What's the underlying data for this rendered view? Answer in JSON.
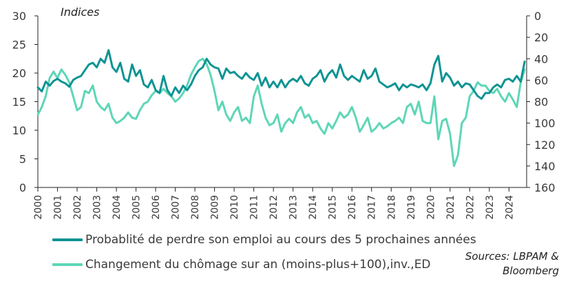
{
  "unit_label": "Indices",
  "source": [
    "Sources: LBPAM &",
    "Bloomberg"
  ],
  "colors": {
    "series1": "#0e9393",
    "series2": "#5dd6b6"
  },
  "chart_data": {
    "type": "line",
    "xlabel": "",
    "ylabel": "Indices",
    "ylim": [
      0,
      30
    ],
    "y_ticks": [
      "0",
      "5",
      "10",
      "15",
      "20",
      "25",
      "30"
    ],
    "y2lim": [
      160,
      0
    ],
    "y2_ticks": [
      "0",
      "20",
      "40",
      "60",
      "80",
      "100",
      "120",
      "140",
      "160"
    ],
    "y2_inverted": true,
    "xlim": [
      2000,
      2024.9
    ],
    "x_ticks": [
      "2000",
      "2001",
      "2002",
      "2003",
      "2004",
      "2005",
      "2006",
      "2007",
      "2008",
      "2009",
      "2010",
      "2011",
      "2012",
      "2013",
      "2014",
      "2015",
      "2016",
      "2017",
      "2018",
      "2019",
      "2020",
      "2021",
      "2022",
      "2023",
      "2024"
    ],
    "grid": false,
    "legend_position": "bottom",
    "series": [
      {
        "name": "Probablité de perdre son emploi au cours des 5 prochaines années",
        "axis": "left",
        "x": [
          2000.0,
          2000.2,
          2000.4,
          2000.6,
          2000.8,
          2001.0,
          2001.2,
          2001.4,
          2001.6,
          2001.8,
          2002.0,
          2002.2,
          2002.4,
          2002.6,
          2002.8,
          2003.0,
          2003.2,
          2003.4,
          2003.6,
          2003.8,
          2004.0,
          2004.2,
          2004.4,
          2004.6,
          2004.8,
          2005.0,
          2005.2,
          2005.4,
          2005.6,
          2005.8,
          2006.0,
          2006.2,
          2006.4,
          2006.6,
          2006.8,
          2007.0,
          2007.2,
          2007.4,
          2007.6,
          2007.8,
          2008.0,
          2008.2,
          2008.4,
          2008.6,
          2008.8,
          2009.0,
          2009.2,
          2009.4,
          2009.6,
          2009.8,
          2010.0,
          2010.2,
          2010.4,
          2010.6,
          2010.8,
          2011.0,
          2011.2,
          2011.4,
          2011.6,
          2011.8,
          2012.0,
          2012.2,
          2012.4,
          2012.6,
          2012.8,
          2013.0,
          2013.2,
          2013.4,
          2013.6,
          2013.8,
          2014.0,
          2014.2,
          2014.4,
          2014.6,
          2014.8,
          2015.0,
          2015.2,
          2015.4,
          2015.6,
          2015.8,
          2016.0,
          2016.2,
          2016.4,
          2016.6,
          2016.8,
          2017.0,
          2017.2,
          2017.4,
          2017.6,
          2017.8,
          2018.0,
          2018.2,
          2018.4,
          2018.6,
          2018.8,
          2019.0,
          2019.2,
          2019.4,
          2019.6,
          2019.8,
          2020.0,
          2020.2,
          2020.4,
          2020.6,
          2020.8,
          2021.0,
          2021.2,
          2021.4,
          2021.6,
          2021.8,
          2022.0,
          2022.2,
          2022.4,
          2022.6,
          2022.8,
          2023.0,
          2023.2,
          2023.4,
          2023.6,
          2023.8,
          2024.0,
          2024.2,
          2024.4,
          2024.6,
          2024.8
        ],
        "values": [
          17.5,
          16.8,
          18.5,
          17.8,
          18.6,
          19.0,
          18.5,
          18.2,
          17.6,
          18.8,
          19.2,
          19.5,
          20.5,
          21.5,
          21.8,
          21.0,
          22.5,
          21.8,
          24.0,
          21.0,
          20.2,
          21.8,
          19.0,
          18.5,
          21.5,
          19.5,
          20.5,
          18.0,
          17.5,
          18.8,
          17.0,
          16.5,
          19.5,
          17.0,
          16.0,
          17.5,
          16.5,
          17.8,
          17.0,
          18.0,
          19.5,
          20.5,
          21.0,
          22.5,
          21.5,
          21.0,
          20.8,
          19.0,
          20.8,
          20.0,
          20.2,
          19.5,
          19.0,
          20.0,
          19.2,
          18.8,
          20.0,
          17.8,
          19.2,
          17.5,
          18.5,
          17.5,
          18.8,
          17.5,
          18.5,
          19.0,
          18.5,
          19.5,
          18.2,
          17.8,
          19.0,
          19.5,
          20.5,
          18.5,
          19.8,
          20.5,
          19.2,
          21.5,
          19.5,
          18.8,
          19.5,
          19.0,
          18.5,
          20.5,
          19.0,
          19.5,
          20.8,
          18.5,
          18.0,
          17.5,
          17.8,
          18.2,
          17.0,
          18.0,
          17.5,
          18.0,
          17.8,
          17.5,
          18.0,
          17.0,
          18.2,
          21.5,
          23.0,
          18.5,
          20.0,
          19.2,
          17.8,
          18.5,
          17.5,
          18.2,
          18.0,
          17.0,
          16.0,
          15.5,
          16.5,
          16.5,
          17.5,
          18.0,
          17.5,
          18.8,
          19.0,
          18.5,
          19.5,
          18.5,
          22.0
        ]
      },
      {
        "name": "Changement du chômage sur an (moins-plus+100),inv.,ED",
        "axis": "right",
        "x": [
          2000.0,
          2000.2,
          2000.4,
          2000.6,
          2000.8,
          2001.0,
          2001.2,
          2001.4,
          2001.6,
          2001.8,
          2002.0,
          2002.2,
          2002.4,
          2002.6,
          2002.8,
          2003.0,
          2003.2,
          2003.4,
          2003.6,
          2003.8,
          2004.0,
          2004.2,
          2004.4,
          2004.6,
          2004.8,
          2005.0,
          2005.2,
          2005.4,
          2005.6,
          2005.8,
          2006.0,
          2006.2,
          2006.4,
          2006.6,
          2006.8,
          2007.0,
          2007.2,
          2007.4,
          2007.6,
          2007.8,
          2008.0,
          2008.2,
          2008.4,
          2008.6,
          2008.8,
          2009.0,
          2009.2,
          2009.4,
          2009.6,
          2009.8,
          2010.0,
          2010.2,
          2010.4,
          2010.6,
          2010.8,
          2011.0,
          2011.2,
          2011.4,
          2011.6,
          2011.8,
          2012.0,
          2012.2,
          2012.4,
          2012.6,
          2012.8,
          2013.0,
          2013.2,
          2013.4,
          2013.6,
          2013.8,
          2014.0,
          2014.2,
          2014.4,
          2014.6,
          2014.8,
          2015.0,
          2015.2,
          2015.4,
          2015.6,
          2015.8,
          2016.0,
          2016.2,
          2016.4,
          2016.6,
          2016.8,
          2017.0,
          2017.2,
          2017.4,
          2017.6,
          2017.8,
          2018.0,
          2018.2,
          2018.4,
          2018.6,
          2018.8,
          2019.0,
          2019.2,
          2019.4,
          2019.6,
          2019.8,
          2020.0,
          2020.2,
          2020.4,
          2020.6,
          2020.8,
          2021.0,
          2021.2,
          2021.4,
          2021.6,
          2021.8,
          2022.0,
          2022.2,
          2022.4,
          2022.6,
          2022.8,
          2023.0,
          2023.2,
          2023.4,
          2023.6,
          2023.8,
          2024.0,
          2024.2,
          2024.4,
          2024.6,
          2024.8
        ],
        "values": [
          92,
          85,
          75,
          58,
          52,
          58,
          50,
          55,
          62,
          75,
          88,
          85,
          70,
          72,
          65,
          80,
          85,
          88,
          82,
          95,
          100,
          98,
          95,
          90,
          95,
          96,
          88,
          82,
          80,
          74,
          70,
          72,
          68,
          72,
          75,
          80,
          77,
          72,
          65,
          55,
          48,
          42,
          40,
          45,
          55,
          70,
          88,
          80,
          92,
          98,
          90,
          85,
          98,
          95,
          100,
          75,
          65,
          82,
          95,
          102,
          100,
          92,
          108,
          100,
          96,
          100,
          90,
          85,
          95,
          92,
          100,
          98,
          105,
          110,
          100,
          105,
          98,
          90,
          95,
          92,
          85,
          95,
          108,
          102,
          95,
          108,
          105,
          100,
          105,
          103,
          100,
          98,
          95,
          100,
          85,
          82,
          92,
          80,
          98,
          100,
          100,
          75,
          115,
          98,
          96,
          110,
          140,
          130,
          100,
          95,
          75,
          70,
          62,
          65,
          65,
          70,
          72,
          68,
          75,
          80,
          72,
          78,
          85,
          62,
          50
        ]
      }
    ]
  }
}
